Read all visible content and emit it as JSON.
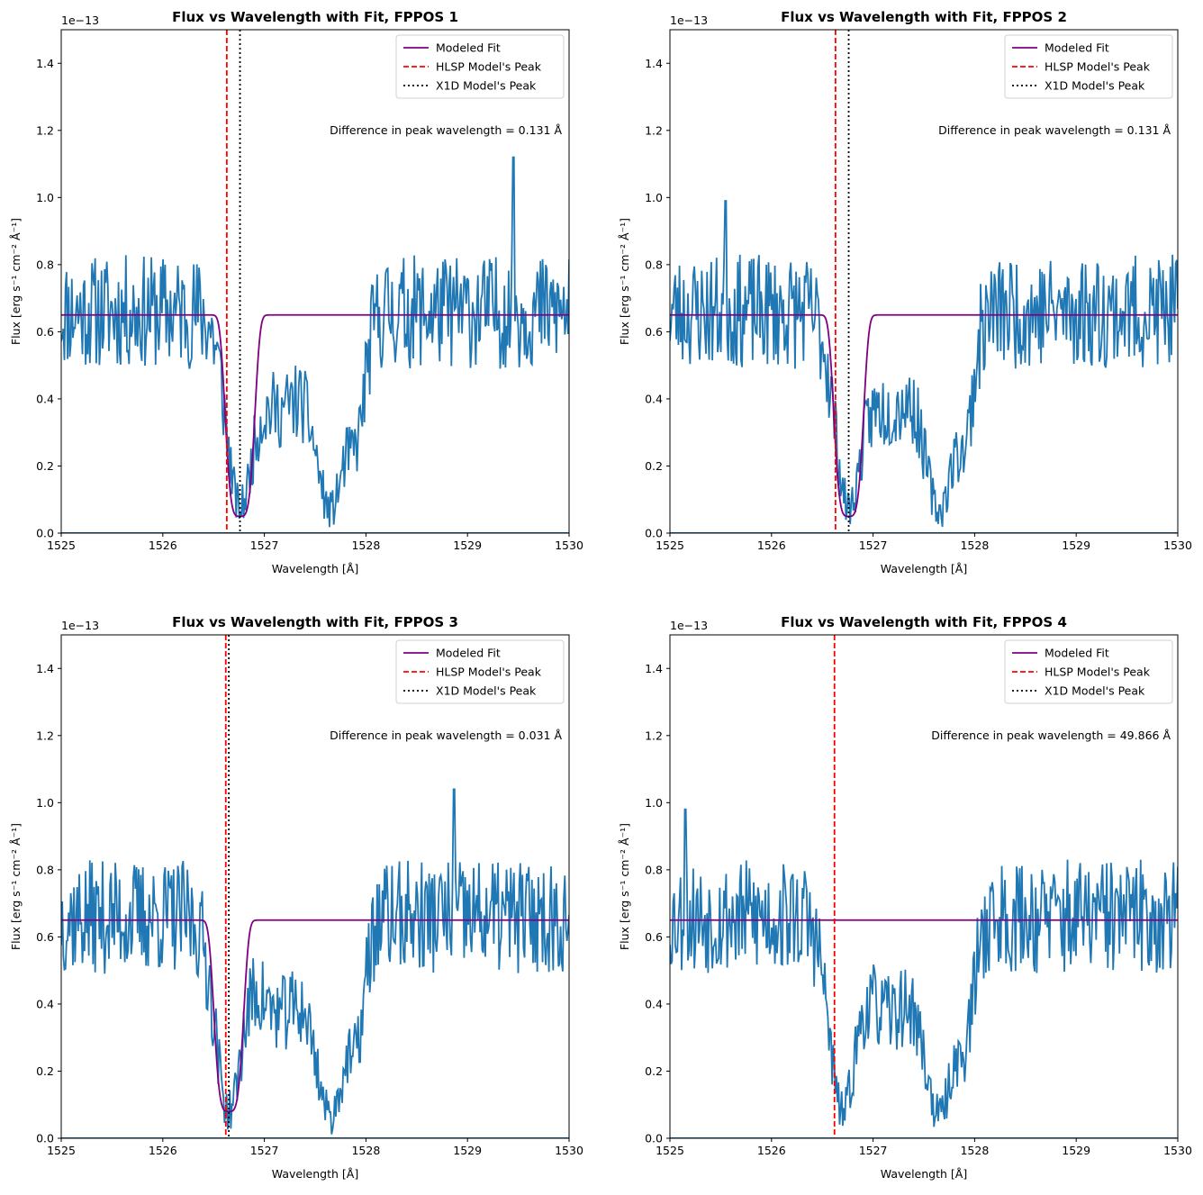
{
  "chart_data": [
    {
      "type": "line",
      "title": "Flux vs Wavelength with Fit, FPPOS 1",
      "xlabel": "Wavelength [Å]",
      "ylabel": "Flux [erg s⁻¹ cm⁻² Å⁻¹]",
      "offset_text": "1e−13",
      "xlim": [
        1525,
        1530
      ],
      "ylim": [
        0,
        1.5
      ],
      "xticks": [
        1525,
        1526,
        1527,
        1528,
        1529,
        1530
      ],
      "yticks": [
        0.0,
        0.2,
        0.4,
        0.6,
        0.8,
        1.0,
        1.2,
        1.4
      ],
      "legend": [
        "Modeled Fit",
        "HLSP Model's Peak",
        "X1D Model's Peak"
      ],
      "legend_position": "top-right",
      "annotation": "Difference in peak wavelength = 0.131 Å",
      "continuum": 0.65,
      "fit_center": 1526.76,
      "fit_min": 0.05,
      "fit_sigma": 0.1,
      "hlsp_peak": 1526.63,
      "x1d_peak": 1526.76,
      "noise_seed": 11,
      "spike": {
        "x": 1529.45,
        "y": 1.12
      }
    },
    {
      "type": "line",
      "title": "Flux vs Wavelength with Fit, FPPOS 2",
      "xlabel": "Wavelength [Å]",
      "ylabel": "Flux [erg s⁻¹ cm⁻² Å⁻¹]",
      "offset_text": "1e−13",
      "xlim": [
        1525,
        1530
      ],
      "ylim": [
        0,
        1.5
      ],
      "xticks": [
        1525,
        1526,
        1527,
        1528,
        1529,
        1530
      ],
      "yticks": [
        0.0,
        0.2,
        0.4,
        0.6,
        0.8,
        1.0,
        1.2,
        1.4
      ],
      "legend": [
        "Modeled Fit",
        "HLSP Model's Peak",
        "X1D Model's Peak"
      ],
      "legend_position": "top-right",
      "annotation": "Difference in peak wavelength = 0.131 Å",
      "continuum": 0.65,
      "fit_center": 1526.76,
      "fit_min": 0.05,
      "fit_sigma": 0.1,
      "hlsp_peak": 1526.63,
      "x1d_peak": 1526.76,
      "noise_seed": 23,
      "spike": {
        "x": 1525.55,
        "y": 0.99
      }
    },
    {
      "type": "line",
      "title": "Flux vs Wavelength with Fit, FPPOS 3",
      "xlabel": "Wavelength [Å]",
      "ylabel": "Flux [erg s⁻¹ cm⁻² Å⁻¹]",
      "offset_text": "1e−13",
      "xlim": [
        1525,
        1530
      ],
      "ylim": [
        0,
        1.5
      ],
      "xticks": [
        1525,
        1526,
        1527,
        1528,
        1529,
        1530
      ],
      "yticks": [
        0.0,
        0.2,
        0.4,
        0.6,
        0.8,
        1.0,
        1.2,
        1.4
      ],
      "legend": [
        "Modeled Fit",
        "HLSP Model's Peak",
        "X1D Model's Peak"
      ],
      "legend_position": "top-right",
      "annotation": "Difference in peak wavelength = 0.031 Å",
      "continuum": 0.65,
      "fit_center": 1526.65,
      "fit_min": 0.08,
      "fit_sigma": 0.1,
      "hlsp_peak": 1526.62,
      "x1d_peak": 1526.65,
      "noise_seed": 37,
      "spike": {
        "x": 1528.87,
        "y": 1.04
      }
    },
    {
      "type": "line",
      "title": "Flux vs Wavelength with Fit, FPPOS 4",
      "xlabel": "Wavelength [Å]",
      "ylabel": "Flux [erg s⁻¹ cm⁻² Å⁻¹]",
      "offset_text": "1e−13",
      "xlim": [
        1525,
        1530
      ],
      "ylim": [
        0,
        1.5
      ],
      "xticks": [
        1525,
        1526,
        1527,
        1528,
        1529,
        1530
      ],
      "yticks": [
        0.0,
        0.2,
        0.4,
        0.6,
        0.8,
        1.0,
        1.2,
        1.4
      ],
      "legend": [
        "Modeled Fit",
        "HLSP Model's Peak",
        "X1D Model's Peak"
      ],
      "legend_position": "top-right",
      "annotation": "Difference in peak wavelength = 49.866 Å",
      "continuum": 0.65,
      "fit_center": null,
      "fit_min": null,
      "fit_sigma": null,
      "hlsp_peak": 1526.62,
      "x1d_peak": null,
      "noise_seed": 53,
      "spike": {
        "x": 1525.15,
        "y": 0.98
      }
    }
  ],
  "colors": {
    "data": "#1f77b4",
    "fit": "#800080",
    "hlsp": "#ff0000",
    "x1d": "#000000"
  }
}
